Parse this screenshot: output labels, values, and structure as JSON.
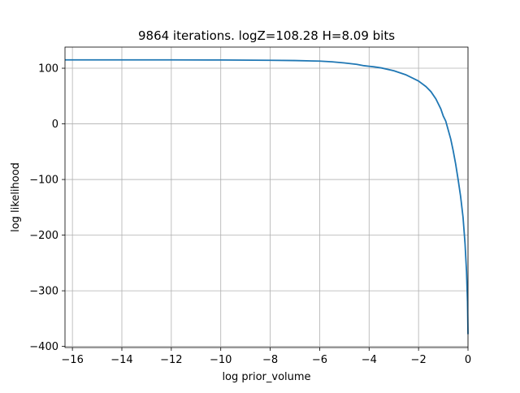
{
  "chart_data": {
    "type": "line",
    "title": "9864 iterations. logZ=108.28 H=8.09 bits",
    "xlabel": "log prior_volume",
    "ylabel": "log likelihood",
    "xlim": [
      -16.3,
      0
    ],
    "ylim": [
      -402,
      138
    ],
    "grid": true,
    "x_ticks": [
      -16,
      -14,
      -12,
      -10,
      -8,
      -6,
      -4,
      -2,
      0
    ],
    "y_ticks": [
      100,
      0,
      -100,
      -200,
      -300,
      -400
    ],
    "tick_labels_x": [
      "−16",
      "−14",
      "−12",
      "−10",
      "−8",
      "−6",
      "−4",
      "−2",
      "0"
    ],
    "tick_labels_y": [
      "100",
      "0",
      "−100",
      "−200",
      "−300",
      "−400"
    ],
    "series": [
      {
        "color": "#1f77b4",
        "x": [
          -16.3,
          -14,
          -12,
          -10,
          -8,
          -7,
          -6,
          -5.5,
          -5,
          -4.5,
          -4.2,
          -4.0,
          -3.8,
          -3.5,
          -3.0,
          -2.5,
          -2.0,
          -1.7,
          -1.5,
          -1.3,
          -1.1,
          -1.0,
          -0.9,
          -0.8,
          -0.7,
          -0.6,
          -0.5,
          -0.4,
          -0.3,
          -0.2,
          -0.12,
          -0.06,
          -0.02,
          0
        ],
        "y": [
          115,
          115,
          115,
          114.8,
          114.3,
          113.8,
          112.8,
          111.5,
          109.5,
          107,
          104.5,
          103.5,
          102.5,
          100.5,
          95.5,
          88,
          77,
          67,
          58,
          45,
          27,
          14,
          5,
          -11,
          -27,
          -48,
          -72,
          -100,
          -130,
          -168,
          -215,
          -265,
          -320,
          -378
        ]
      }
    ]
  }
}
